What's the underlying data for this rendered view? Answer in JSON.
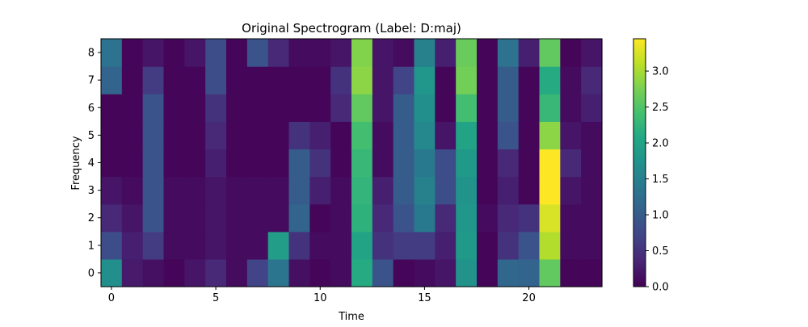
{
  "chart_data": {
    "type": "heatmap",
    "title": "Original Spectrogram (Label: D:maj)",
    "xlabel": "Time",
    "ylabel": "Frequency",
    "x_ticks": [
      0,
      5,
      10,
      15,
      20
    ],
    "y_ticks": [
      0,
      1,
      2,
      3,
      4,
      5,
      6,
      7,
      8
    ],
    "xlim": [
      -0.5,
      23.5
    ],
    "ylim": [
      -0.5,
      8.5
    ],
    "colormap": "viridis",
    "colorbar": {
      "range": [
        0.0,
        3.45
      ],
      "ticks": [
        "0.0",
        "0.5",
        "1.0",
        "1.5",
        "2.0",
        "2.5",
        "3.0"
      ]
    },
    "rows_by_frequency": [
      [
        1.7,
        0.25,
        0.15,
        0.05,
        0.2,
        0.4,
        0.1,
        0.7,
        1.35,
        0.15,
        0.05,
        0.1,
        2.1,
        0.9,
        0.05,
        0.1,
        0.2,
        1.75,
        0.05,
        1.15,
        1.1,
        2.6,
        0.05,
        0.05
      ],
      [
        0.8,
        0.3,
        0.6,
        0.1,
        0.1,
        0.2,
        0.1,
        0.1,
        1.9,
        0.5,
        0.1,
        0.1,
        2.0,
        0.5,
        0.6,
        0.6,
        0.3,
        1.85,
        0.05,
        0.5,
        0.9,
        3.05,
        0.1,
        0.1
      ],
      [
        0.4,
        0.2,
        0.9,
        0.1,
        0.1,
        0.2,
        0.1,
        0.1,
        0.1,
        1.1,
        0.05,
        0.1,
        2.2,
        0.4,
        0.9,
        1.4,
        0.4,
        1.8,
        0.1,
        0.4,
        0.5,
        3.25,
        0.1,
        0.1
      ],
      [
        0.2,
        0.1,
        0.9,
        0.1,
        0.1,
        0.2,
        0.1,
        0.1,
        0.1,
        1.0,
        0.3,
        0.1,
        2.25,
        0.3,
        1.0,
        1.5,
        0.8,
        1.75,
        0.05,
        0.3,
        0.05,
        3.45,
        0.2,
        0.1
      ],
      [
        0.05,
        0.05,
        0.9,
        0.05,
        0.05,
        0.3,
        0.05,
        0.05,
        0.05,
        1.0,
        0.5,
        0.05,
        2.3,
        0.1,
        1.0,
        1.4,
        0.8,
        1.85,
        0.05,
        0.4,
        0.05,
        3.45,
        0.4,
        0.1
      ],
      [
        0.05,
        0.05,
        0.9,
        0.05,
        0.05,
        0.4,
        0.05,
        0.05,
        0.05,
        0.5,
        0.3,
        0.05,
        2.4,
        0.1,
        1.0,
        1.6,
        0.2,
        2.0,
        0.05,
        0.9,
        0.05,
        2.85,
        0.2,
        0.1
      ],
      [
        0.05,
        0.05,
        0.9,
        0.05,
        0.05,
        0.5,
        0.05,
        0.05,
        0.05,
        0.05,
        0.05,
        0.4,
        2.6,
        0.2,
        1.0,
        1.7,
        0.05,
        2.4,
        0.05,
        1.0,
        0.05,
        2.3,
        0.1,
        0.3
      ],
      [
        1.1,
        0.05,
        0.6,
        0.05,
        0.05,
        0.8,
        0.05,
        0.05,
        0.05,
        0.05,
        0.05,
        0.5,
        2.85,
        0.2,
        0.7,
        1.8,
        0.05,
        2.7,
        0.05,
        1.0,
        0.05,
        2.1,
        0.1,
        0.4
      ],
      [
        1.3,
        0.05,
        0.2,
        0.05,
        0.2,
        0.8,
        0.05,
        0.9,
        0.4,
        0.1,
        0.1,
        0.2,
        2.8,
        0.2,
        0.1,
        1.5,
        0.3,
        2.65,
        0.05,
        1.3,
        0.3,
        2.6,
        0.05,
        0.2
      ]
    ]
  }
}
